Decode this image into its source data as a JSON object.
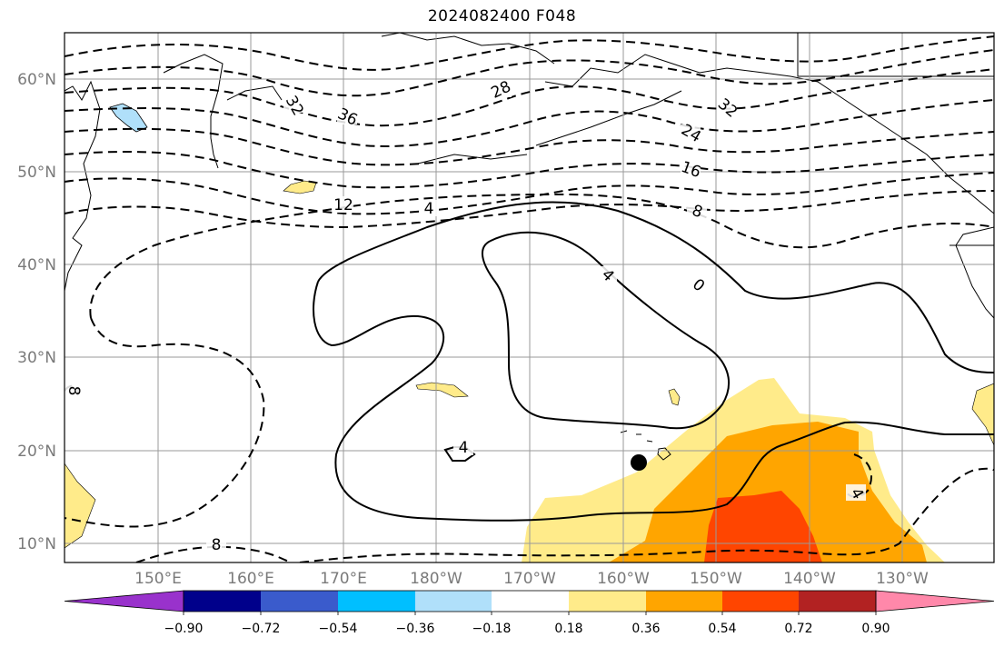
{
  "title": "2024082400 F048",
  "map": {
    "lat_ticks": [
      "60°N",
      "50°N",
      "40°N",
      "30°N",
      "20°N",
      "10°N"
    ],
    "lon_ticks": [
      "150°E",
      "160°E",
      "170°E",
      "180°W",
      "170°W",
      "160°W",
      "150°W",
      "140°W",
      "130°W"
    ],
    "grid": true,
    "marker": "storm-position-marker",
    "contour_labels": [
      "32",
      "36",
      "28",
      "24",
      "32",
      "16",
      "12",
      "4",
      "8",
      "4",
      "0",
      "4",
      "4",
      "8",
      "8"
    ]
  },
  "colorbar": {
    "tick_labels": [
      "−0.90",
      "−0.72",
      "−0.54",
      "−0.36",
      "−0.18",
      "0.18",
      "0.36",
      "0.54",
      "0.72",
      "0.90"
    ],
    "colors": [
      "#9932cc",
      "#00008b",
      "#3a5bcc",
      "#00bfff",
      "#b0e0fa",
      "#ffffff",
      "#ffeb8a",
      "#ffa500",
      "#ff4500",
      "#b22222",
      "#ff88aa"
    ]
  },
  "fill_colors": {
    "light_yellow": "#ffeb8a",
    "orange": "#ffa500",
    "red_orange": "#ff4500",
    "light_blue": "#b0e0fa"
  }
}
